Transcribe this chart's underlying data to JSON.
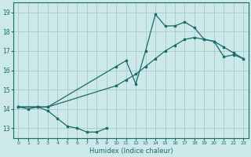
{
  "xlabel": "Humidex (Indice chaleur)",
  "bg_color": "#cce8e8",
  "grid_color": "#aacfcf",
  "line_color": "#1a6b6b",
  "xlim": [
    -0.5,
    23.5
  ],
  "ylim": [
    12.5,
    19.5
  ],
  "xticks": [
    0,
    1,
    2,
    3,
    4,
    5,
    6,
    7,
    8,
    9,
    10,
    11,
    12,
    13,
    14,
    15,
    16,
    17,
    18,
    19,
    20,
    21,
    22,
    23
  ],
  "yticks": [
    13,
    14,
    15,
    16,
    17,
    18,
    19
  ],
  "line1_x": [
    0,
    1,
    2,
    3,
    4,
    5,
    6,
    7,
    8,
    9
  ],
  "line1_y": [
    14.1,
    14.0,
    14.1,
    13.9,
    13.5,
    13.1,
    13.0,
    12.8,
    12.8,
    13.0
  ],
  "line2_x": [
    0,
    2,
    3,
    10,
    11,
    12,
    13,
    14,
    15,
    16,
    17,
    18,
    19,
    20,
    21,
    22,
    23
  ],
  "line2_y": [
    14.1,
    14.1,
    14.1,
    15.2,
    15.5,
    15.8,
    16.2,
    16.6,
    17.0,
    17.3,
    17.6,
    17.7,
    17.6,
    17.5,
    17.2,
    16.9,
    16.6
  ],
  "line3_x": [
    0,
    2,
    3,
    10,
    11,
    12,
    13,
    14,
    15,
    16,
    17,
    18,
    19,
    20,
    21,
    22,
    23
  ],
  "line3_y": [
    14.1,
    14.1,
    14.1,
    16.2,
    16.5,
    15.3,
    17.0,
    18.9,
    18.3,
    18.3,
    18.5,
    18.2,
    17.6,
    17.5,
    16.7,
    16.8,
    16.6
  ]
}
